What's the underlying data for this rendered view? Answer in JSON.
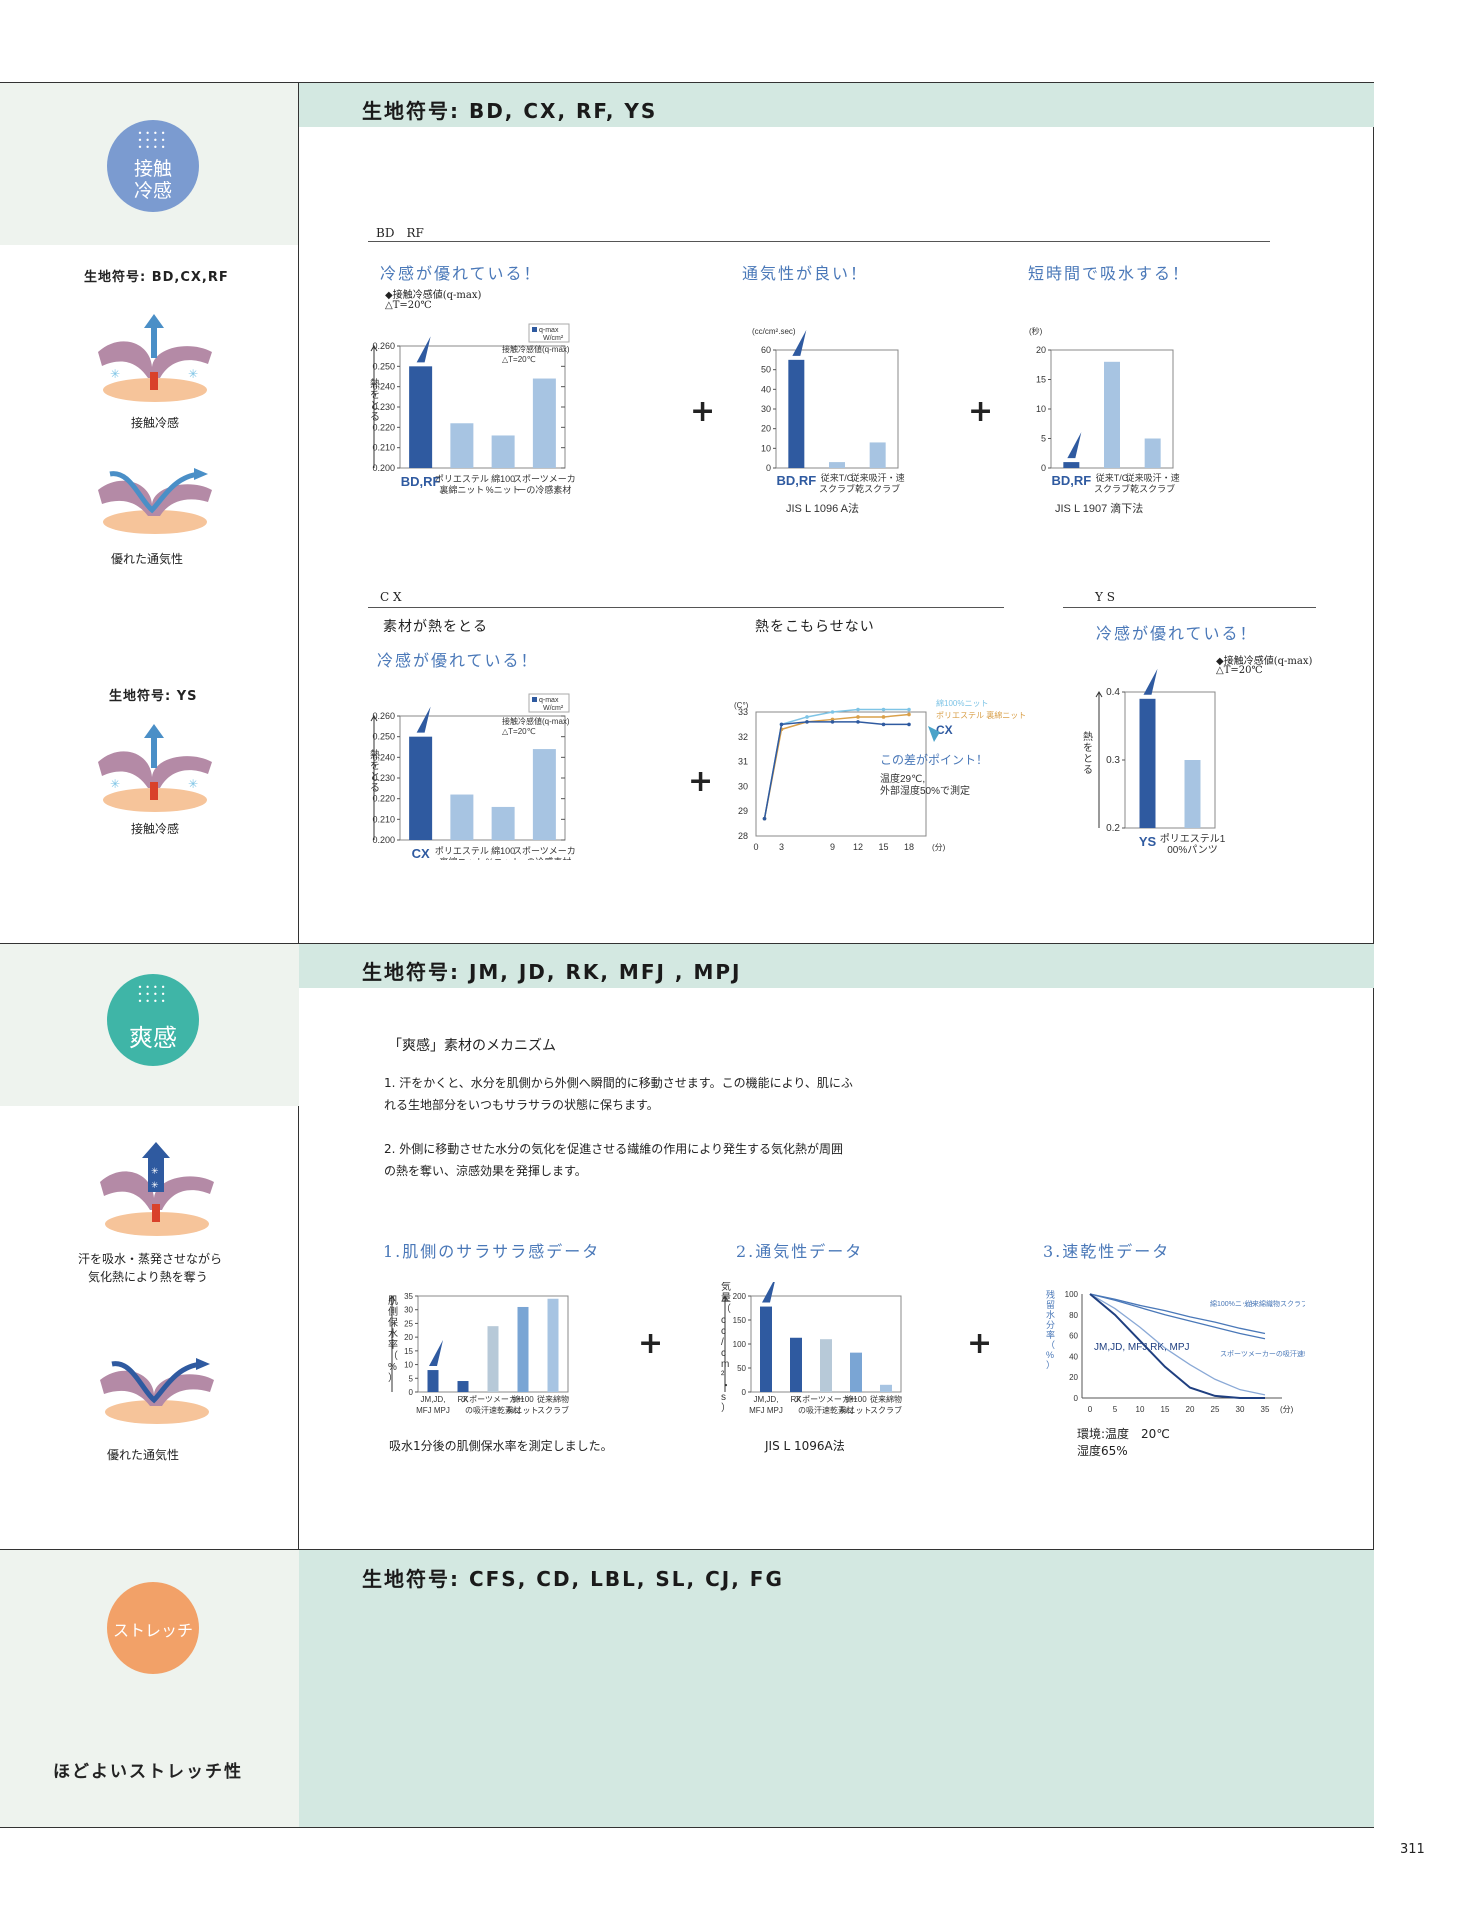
{
  "colors": {
    "dark_blue": "#2f5aa0",
    "light_blue": "#a7c4e2",
    "section_head_bg": "#d3e8e1",
    "left_bg": "#eef3ee",
    "circle1": "#7b9bd0",
    "circle2": "#3fb5a7",
    "circle3": "#f2a168"
  },
  "sec1": {
    "header": "生地符号: BD, CX, RF, YS",
    "badge": "接触\n冷感",
    "left_label1": "生地符号: BD,CX,RF",
    "left_cap1": "接触冷感",
    "left_cap2": "優れた通気性",
    "left_label2": "生地符号: YS",
    "left_cap3": "接触冷感",
    "sub1_label": "BD　RF",
    "t1": "冷感が優れている！",
    "t1_note1": "◆接触冷感値(q-max)",
    "t1_note2": "△T=20℃",
    "t2": "通気性が良い！",
    "t3": "短時間で吸水する！",
    "sub2_label": "C X",
    "cx_lead1": "素材が熱をとる",
    "cx_lead2": "熱をこもらせない",
    "cx_title": "冷感が優れている！",
    "ys_label": "Y S",
    "ys_title": "冷感が優れている！",
    "ys_note1": "◆接触冷感値(q-max)",
    "ys_note2": "△T=20℃"
  },
  "sec2": {
    "header": "生地符号: JM, JD, RK, MFJ , MPJ",
    "badge": "爽感",
    "left_cap1a": "汗を吸水・蒸発させながら",
    "left_cap1b": "気化熱により熱を奪う",
    "left_cap2": "優れた通気性",
    "mech_title": "「爽感」素材のメカニズム",
    "p1a": "1.  汗をかくと、水分を肌側から外側へ瞬間的に移動させます。この機能により、肌にふ",
    "p1b": "れる生地部分をいつもサラサラの状態に保ちます。",
    "p2a": "2. 外側に移動させた水分の気化を促進させる繊維の作用により発生する気化熱が周囲",
    "p2b": "の熱を奪い、涼感効果を発揮します。",
    "t1": "1.肌側のサラサラ感データ",
    "t2": "2.通気性データ",
    "t3": "3.速乾性データ",
    "note1": "吸水1分後の肌側保水率を測定しました。",
    "note2": "JIS L 1096A法",
    "note3a": "環境:温度　20℃",
    "note3b": "湿度65%"
  },
  "sec3": {
    "header": "生地符号: CFS, CD, LBL, SL, CJ, FG",
    "badge": "ストレッチ",
    "left_cap": "ほどよいストレッチ性"
  },
  "page_number": "311",
  "chart_data": [
    {
      "id": "qmax_bdrf",
      "type": "bar",
      "categories": [
        "BD,RF",
        "ポリエステル裏綿ニット",
        "綿100%ニット",
        "スポーツメーカーの冷感素材"
      ],
      "values": [
        0.25,
        0.222,
        0.216,
        0.244
      ],
      "ylim": [
        0.2,
        0.26
      ],
      "yticks": [
        "0.260",
        "0.250",
        "0.240",
        "0.230",
        "0.220",
        "0.210",
        "0.200"
      ],
      "ylabel": "熱をとる",
      "legend": "q-max W/cm²",
      "inner_note1": "接触冷感値(q-max)",
      "inner_note2": "△T=20℃"
    },
    {
      "id": "air_bdrf",
      "type": "bar",
      "categories": [
        "BD,RF",
        "従来T/Cスクラブ",
        "従来吸汗・速乾スクラブ"
      ],
      "values": [
        55,
        3,
        13
      ],
      "ylim": [
        0,
        60
      ],
      "yticks": [
        "60",
        "50",
        "40",
        "30",
        "20",
        "10",
        "0"
      ],
      "unit": "(cc/cm².sec)",
      "note": "JIS L 1096 A法"
    },
    {
      "id": "absorb_bdrf",
      "type": "bar",
      "categories": [
        "BD,RF",
        "従来T/Cスクラブ",
        "従来吸汗・速乾スクラブ"
      ],
      "values": [
        1,
        18,
        5
      ],
      "ylim": [
        0,
        20
      ],
      "yticks": [
        "20",
        "15",
        "10",
        "5",
        "0"
      ],
      "unit": "(秒)",
      "note": "JIS L 1907 滴下法"
    },
    {
      "id": "qmax_cx",
      "type": "bar",
      "categories": [
        "CX",
        "ポリエステル裏綿ニット",
        "綿100%ニット",
        "スポーツメーカーの冷感素材"
      ],
      "values": [
        0.25,
        0.222,
        0.216,
        0.244
      ],
      "ylim": [
        0.2,
        0.26
      ],
      "yticks": [
        "0.260",
        "0.250",
        "0.240",
        "0.230",
        "0.220",
        "0.210",
        "0.200"
      ],
      "ylabel": "熱をとる",
      "legend": "q-max W/cm²",
      "inner_note1": "接触冷感値(q-max)",
      "inner_note2": "△T=20℃"
    },
    {
      "id": "temp_cx",
      "type": "line",
      "x": [
        1,
        3,
        6,
        9,
        12,
        15,
        18
      ],
      "series": [
        {
          "name": "綿100%ニット",
          "values": [
            28.7,
            32.5,
            32.8,
            33.0,
            33.1,
            33.1,
            33.1
          ]
        },
        {
          "name": "ポリエステル 裏綿ニット",
          "values": [
            28.7,
            32.3,
            32.6,
            32.7,
            32.8,
            32.8,
            32.9
          ]
        },
        {
          "name": "CX",
          "values": [
            28.7,
            32.5,
            32.6,
            32.6,
            32.6,
            32.5,
            32.5
          ]
        }
      ],
      "xticks": [
        "0",
        "3",
        "9",
        "12",
        "15",
        "18"
      ],
      "xunit": "(分)",
      "yunit": "(C°)",
      "ylim": [
        28,
        33
      ],
      "yticks": [
        "33",
        "32",
        "31",
        "30",
        "29",
        "28"
      ],
      "annotation1": "この差がポイント！",
      "annotation2": "温度29℃,",
      "annotation3": "外部湿度50%で測定"
    },
    {
      "id": "qmax_ys",
      "type": "bar",
      "categories": [
        "YS",
        "ポリエステル100%パンツ"
      ],
      "values": [
        0.39,
        0.3
      ],
      "ylim": [
        0.2,
        0.4
      ],
      "yticks": [
        "0.4",
        "0.3",
        "0.2"
      ],
      "ylabel": "熱をとる"
    },
    {
      "id": "skin_water",
      "type": "bar",
      "categories": [
        "JM,JD, MFJ MPJ",
        "RK",
        "スポーツメーカーの吸汗速乾素材",
        "綿100%ニット",
        "従来綿物スクラブ"
      ],
      "values": [
        8,
        4,
        24,
        31,
        34
      ],
      "ylim": [
        0,
        35
      ],
      "yticks": [
        "35",
        "30",
        "25",
        "20",
        "15",
        "10",
        "5",
        "0"
      ],
      "ylabel": "肌側保水率（%）"
    },
    {
      "id": "air_sokan",
      "type": "bar",
      "categories": [
        "JM,JD, MFJ MPJ",
        "RK",
        "スポーツメーカーの吸汗速乾素材",
        "綿100%ニット",
        "従来綿物スクラブ"
      ],
      "values": [
        178,
        113,
        110,
        82,
        15
      ],
      "ylim": [
        0,
        200
      ],
      "yticks": [
        "200",
        "150",
        "100",
        "50",
        "0"
      ],
      "ylabel": "通気量（cc/cm²・s）"
    },
    {
      "id": "drying",
      "type": "line",
      "x": [
        0,
        5,
        10,
        15,
        20,
        25,
        30,
        35
      ],
      "series": [
        {
          "name": "綿100%ニット",
          "values": [
            100,
            94,
            87,
            80,
            74,
            68,
            62,
            57
          ]
        },
        {
          "name": "従来綿織物スクラブ",
          "values": [
            100,
            95,
            89,
            84,
            78,
            73,
            67,
            62
          ]
        },
        {
          "name": "スポーツメーカーの吸汗速乾素材",
          "values": [
            100,
            86,
            68,
            48,
            32,
            18,
            8,
            3
          ]
        },
        {
          "name": "JM,JD, MFJ,RK, MPJ",
          "values": [
            100,
            80,
            55,
            30,
            10,
            2,
            0,
            0
          ]
        }
      ],
      "xticks": [
        "0",
        "5",
        "10",
        "15",
        "20",
        "25",
        "30",
        "35"
      ],
      "xunit": "(分)",
      "ylim": [
        0,
        100
      ],
      "yticks": [
        "100",
        "80",
        "60",
        "40",
        "20",
        "0"
      ],
      "ylabel": "残留水分率（%）"
    }
  ]
}
